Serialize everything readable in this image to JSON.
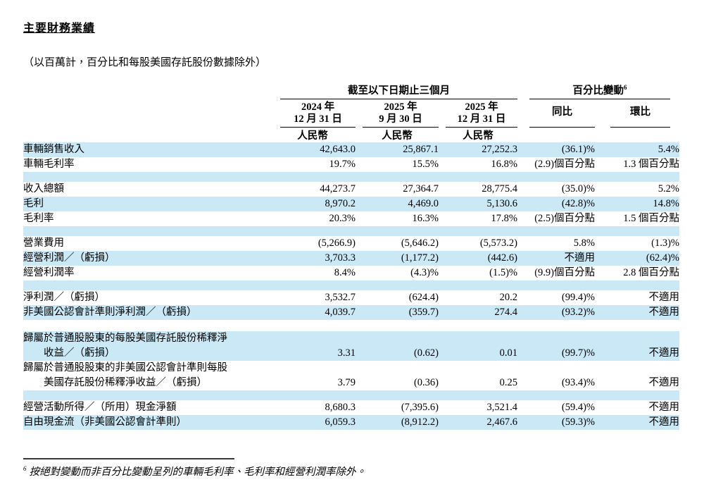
{
  "title": "主要財務業績",
  "subtitle": "（以百萬計，百分比和每股美國存託股份數據除外）",
  "colors": {
    "row_highlight": "#cae8f6",
    "rule": "#000000"
  },
  "table": {
    "group_headers": [
      {
        "label": "截至以下日期止三個月",
        "sup": ""
      },
      {
        "label": "百分比變動",
        "sup": "6"
      }
    ],
    "columns": [
      {
        "line1": "2024 年",
        "line2": "12 月 31 日"
      },
      {
        "line1": "2025 年",
        "line2": "9 月 30 日"
      },
      {
        "line1": "2025 年",
        "line2": "12 月 31 日"
      },
      {
        "label": "同比"
      },
      {
        "label": "環比"
      }
    ],
    "currency_label": "人民幣",
    "rows": [
      {
        "label": "車輛銷售收入",
        "values": [
          "42,643.0",
          "25,867.1",
          "27,252.3",
          "(36.1)%",
          "5.4%"
        ],
        "bg": "blue"
      },
      {
        "label": "車輛毛利率",
        "values": [
          "19.7%",
          "15.5%",
          "16.8%",
          "(2.9)個百分點",
          "1.3 個百分點"
        ],
        "bg": "white"
      },
      {
        "spacer": true,
        "bg": "blue"
      },
      {
        "label": "收入總額",
        "values": [
          "44,273.7",
          "27,364.7",
          "28,775.4",
          "(35.0)%",
          "5.2%"
        ],
        "bg": "white"
      },
      {
        "label": "毛利",
        "values": [
          "8,970.2",
          "4,469.0",
          "5,130.6",
          "(42.8)%",
          "14.8%"
        ],
        "bg": "blue"
      },
      {
        "label": "毛利率",
        "values": [
          "20.3%",
          "16.3%",
          "17.8%",
          "(2.5)個百分點",
          "1.5 個百分點"
        ],
        "bg": "white"
      },
      {
        "spacer": true,
        "bg": "blue"
      },
      {
        "label": "營業費用",
        "values": [
          "(5,266.9)",
          "(5,646.2)",
          "(5,573.2)",
          "5.8%",
          "(1.3)%"
        ],
        "bg": "white"
      },
      {
        "label": "經營利潤／（虧損）",
        "values": [
          "3,703.3",
          "(1,177.2)",
          "(442.6)",
          "不適用",
          "(62.4)%"
        ],
        "bg": "blue"
      },
      {
        "label": "經營利潤率",
        "values": [
          "8.4%",
          "(4.3)%",
          "(1.5)%",
          "(9.9)個百分點",
          "2.8 個百分點"
        ],
        "bg": "white"
      },
      {
        "spacer": true,
        "bg": "blue"
      },
      {
        "label": "淨利潤／（虧損）",
        "values": [
          "3,532.7",
          "(624.4)",
          "20.2",
          "(99.4)%",
          "不適用"
        ],
        "bg": "white"
      },
      {
        "label": "非美國公認會計準則淨利潤／（虧損）",
        "values": [
          "4,039.7",
          "(359.7)",
          "274.4",
          "(93.2)%",
          "不適用"
        ],
        "bg": "blue"
      },
      {
        "spacer": true,
        "bg": "white"
      },
      {
        "label": "歸屬於普通股股東的每股美國存託股份稀釋淨",
        "label2": "收益／（虧損）",
        "values": [
          "3.31",
          "(0.62)",
          "0.01",
          "(99.7)%",
          "不適用"
        ],
        "bg": "blue"
      },
      {
        "label": "歸屬於普通股股東的非美國公認會計準則每股",
        "label2": "美國存託股份稀釋淨收益／（虧損）",
        "values": [
          "3.79",
          "(0.36)",
          "0.25",
          "(93.4)%",
          "不適用"
        ],
        "bg": "white"
      },
      {
        "spacer": true,
        "bg": "blue"
      },
      {
        "label": "經營活動所得／（所用）現金淨額",
        "values": [
          "8,680.3",
          "(7,395.6)",
          "3,521.4",
          "(59.4)%",
          "不適用"
        ],
        "bg": "white"
      },
      {
        "label": "自由現金流（非美國公認會計準則）",
        "values": [
          "6,059.3",
          "(8,912.2)",
          "2,467.6",
          "(59.3)%",
          "不適用"
        ],
        "bg": "blue"
      }
    ]
  },
  "footnote": {
    "marker": "6",
    "text": "按絕對變動而非百分比變動呈列的車輛毛利率、毛利率和經營利潤率除外。"
  }
}
